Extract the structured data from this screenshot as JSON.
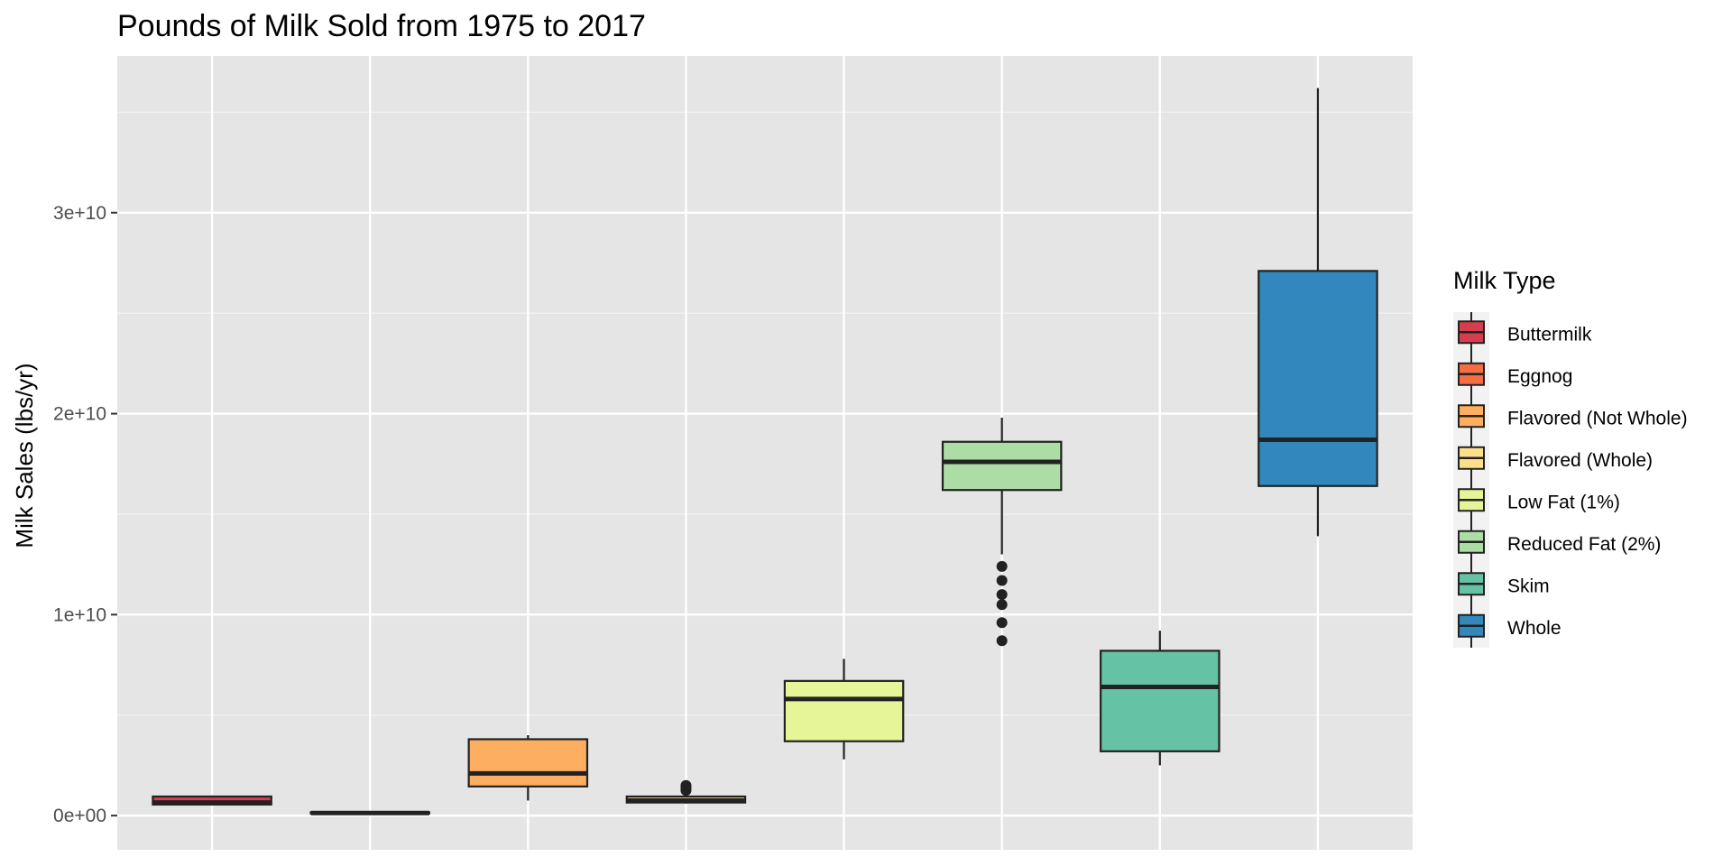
{
  "chart_data": {
    "type": "boxplot",
    "title": "Pounds of Milk Sold from 1975 to 2017",
    "xlabel": "",
    "ylabel": "Milk Sales (lbs/yr)",
    "ylim": [
      -1700000000.0,
      37800000000.0
    ],
    "yticks": [
      0,
      10000000000,
      20000000000,
      30000000000
    ],
    "ytick_labels": [
      "0e+00",
      "1e+10",
      "2e+10",
      "3e+10"
    ],
    "grid": true,
    "legend": {
      "title": "Milk Type",
      "position": "right"
    },
    "categories": [
      "Buttermilk",
      "Eggnog",
      "Flavored  (Not Whole)",
      "Flavored (Whole)",
      "Low Fat (1%)",
      "Reduced Fat (2%)",
      "Skim",
      "Whole"
    ],
    "series": [
      {
        "name": "Buttermilk",
        "color": "#D53E4F",
        "min": 550000000,
        "q1": 550000000,
        "median": 650000000,
        "q3": 950000000,
        "max": 1000000000,
        "outliers": []
      },
      {
        "name": "Eggnog",
        "color": "#F46D43",
        "min": 100000000,
        "q1": 110000000,
        "median": 130000000,
        "q3": 160000000,
        "max": 180000000,
        "outliers": []
      },
      {
        "name": "Flavored  (Not Whole)",
        "color": "#FDAE61",
        "min": 750000000,
        "q1": 1450000000,
        "median": 2100000000,
        "q3": 3800000000,
        "max": 4000000000,
        "outliers": []
      },
      {
        "name": "Flavored (Whole)",
        "color": "#FEE08B",
        "min": 600000000,
        "q1": 650000000,
        "median": 750000000,
        "q3": 950000000,
        "max": 1050000000,
        "outliers": [
          1250000000,
          1350000000,
          1450000000,
          1500000000
        ]
      },
      {
        "name": "Low Fat (1%)",
        "color": "#E6F598",
        "min": 2800000000,
        "q1": 3700000000,
        "median": 5800000000,
        "q3": 6700000000,
        "max": 7800000000,
        "outliers": []
      },
      {
        "name": "Reduced Fat (2%)",
        "color": "#ABDDA4",
        "min": 13000000000,
        "q1": 16200000000,
        "median": 17600000000,
        "q3": 18600000000,
        "max": 19800000000,
        "outliers": [
          8700000000,
          9600000000,
          10500000000,
          11000000000,
          11700000000,
          12400000000
        ]
      },
      {
        "name": "Skim",
        "color": "#66C2A5",
        "min": 2500000000,
        "q1": 3200000000,
        "median": 6400000000,
        "q3": 8200000000,
        "max": 9200000000,
        "outliers": []
      },
      {
        "name": "Whole",
        "color": "#3288BD",
        "min": 13900000000,
        "q1": 16400000000,
        "median": 18700000000,
        "q3": 27100000000,
        "max": 36200000000,
        "outliers": []
      }
    ]
  }
}
